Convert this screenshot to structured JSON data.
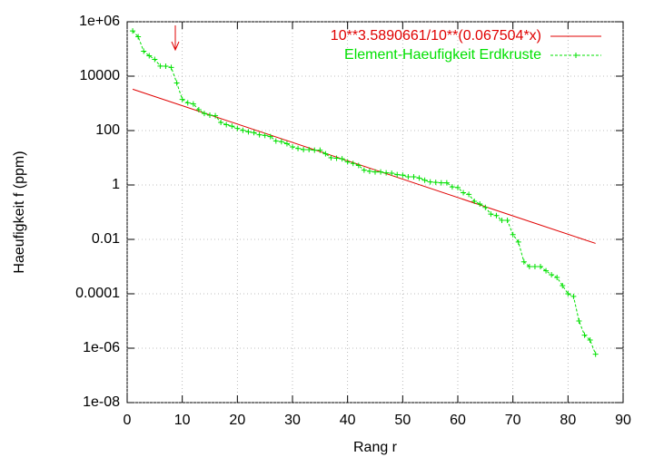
{
  "chart_data": {
    "type": "line",
    "log_y": true,
    "grid": true,
    "legend": "top-right",
    "xlabel": "Rang r",
    "ylabel": "Haeufigkeit f (ppm)",
    "xlim": [
      0,
      90
    ],
    "xticks": [
      0,
      10,
      20,
      30,
      40,
      50,
      60,
      70,
      80,
      90
    ],
    "ylim": [
      1e-08,
      1000000
    ],
    "yticks": [
      {
        "value": 1e-08,
        "label": "1e-08"
      },
      {
        "value": 1e-06,
        "label": "1e-06"
      },
      0.0001,
      0.01,
      1,
      100,
      10000,
      {
        "value": 1000000,
        "label": "1e+06"
      }
    ],
    "series": [
      {
        "name": "10**3.5890661/10**(0.067504*x)",
        "color": "#e00000",
        "marker": false,
        "x": [
          1,
          85
        ],
        "values": [
          3323,
          0.0071
        ]
      },
      {
        "name": "Element-Haeufigkeit Erdkruste",
        "color": "#00e000",
        "marker": true,
        "x": [
          1,
          2,
          3,
          4,
          5,
          6,
          7,
          8,
          9,
          10,
          11,
          12,
          13,
          14,
          15,
          16,
          17,
          18,
          19,
          20,
          21,
          22,
          23,
          24,
          25,
          26,
          27,
          28,
          29,
          30,
          31,
          32,
          33,
          34,
          35,
          36,
          37,
          38,
          39,
          40,
          41,
          42,
          43,
          44,
          45,
          46,
          47,
          48,
          49,
          50,
          51,
          52,
          53,
          54,
          55,
          56,
          57,
          58,
          59,
          60,
          61,
          62,
          63,
          64,
          65,
          66,
          67,
          68,
          69,
          70,
          71,
          72,
          73,
          74,
          75,
          76,
          77,
          78,
          79,
          80,
          81,
          82,
          83,
          84,
          85
        ],
        "values": [
          461000,
          282000,
          82300,
          56300,
          41500,
          23600,
          23300,
          20900,
          5650,
          1400,
          1050,
          950,
          585,
          425,
          370,
          350,
          200,
          165,
          145,
          120,
          102,
          90,
          84,
          70,
          66.5,
          60,
          41.5,
          39,
          33,
          25,
          22,
          20,
          20,
          19,
          19,
          14,
          10,
          9.6,
          9.2,
          7.05,
          6.2,
          5.2,
          3.5,
          3.2,
          3,
          3,
          2.8,
          2.7,
          2.4,
          2.3,
          2,
          2,
          1.8,
          1.5,
          1.3,
          1.25,
          1.2,
          1.2,
          0.85,
          0.8,
          0.52,
          0.45,
          0.25,
          0.2,
          0.15,
          0.085,
          0.075,
          0.05,
          0.05,
          0.015,
          0.008,
          0.0015,
          0.001,
          0.001,
          0.001,
          0.0007,
          0.0005,
          0.0004,
          0.0002,
          0.0001,
          8e-05,
          1e-05,
          3e-06,
          2e-06,
          6e-07
        ]
      }
    ]
  }
}
